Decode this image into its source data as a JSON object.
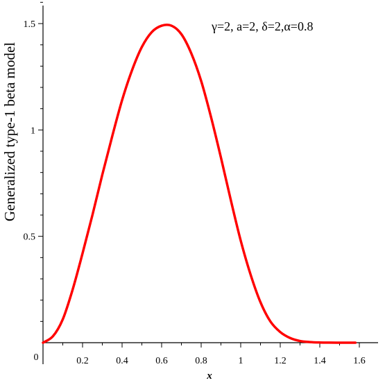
{
  "chart_data": {
    "type": "line",
    "title": "",
    "xlabel": "x",
    "ylabel": "Generalized type-1 beta model",
    "annotation": "γ=2, a=2, δ=2,α=0.8",
    "xlim": [
      0,
      1.6
    ],
    "ylim": [
      0,
      1.5
    ],
    "x_ticks": [
      {
        "value": 0.2,
        "label": "0.2"
      },
      {
        "value": 0.4,
        "label": "0.4"
      },
      {
        "value": 0.6,
        "label": "0.6"
      },
      {
        "value": 0.8,
        "label": "0.8"
      },
      {
        "value": 1.0,
        "label": "1"
      },
      {
        "value": 1.2,
        "label": "1.2"
      },
      {
        "value": 1.4,
        "label": "1.4"
      },
      {
        "value": 1.6,
        "label": "1.6"
      }
    ],
    "y_ticks": [
      {
        "value": 0.5,
        "label": "0.5"
      },
      {
        "value": 1.0,
        "label": "1"
      },
      {
        "value": 1.5,
        "label": "1.5"
      }
    ],
    "origin_label": "0",
    "grid": false,
    "series": [
      {
        "color": "#ff0000",
        "x": [
          0,
          0.05,
          0.1,
          0.15,
          0.2,
          0.25,
          0.3,
          0.35,
          0.4,
          0.45,
          0.5,
          0.55,
          0.6,
          0.65,
          0.7,
          0.75,
          0.8,
          0.85,
          0.9,
          0.95,
          1.0,
          1.05,
          1.1,
          1.15,
          1.2,
          1.25,
          1.3,
          1.35,
          1.4,
          1.45,
          1.5,
          1.55,
          1.58
        ],
        "y": [
          0,
          0.03,
          0.11,
          0.25,
          0.42,
          0.6,
          0.79,
          0.97,
          1.14,
          1.28,
          1.39,
          1.46,
          1.49,
          1.49,
          1.45,
          1.36,
          1.23,
          1.06,
          0.87,
          0.67,
          0.48,
          0.32,
          0.19,
          0.1,
          0.05,
          0.022,
          0.008,
          0.003,
          0.001,
          0.0003,
          0.0001,
          0.0,
          0.0
        ]
      }
    ]
  }
}
